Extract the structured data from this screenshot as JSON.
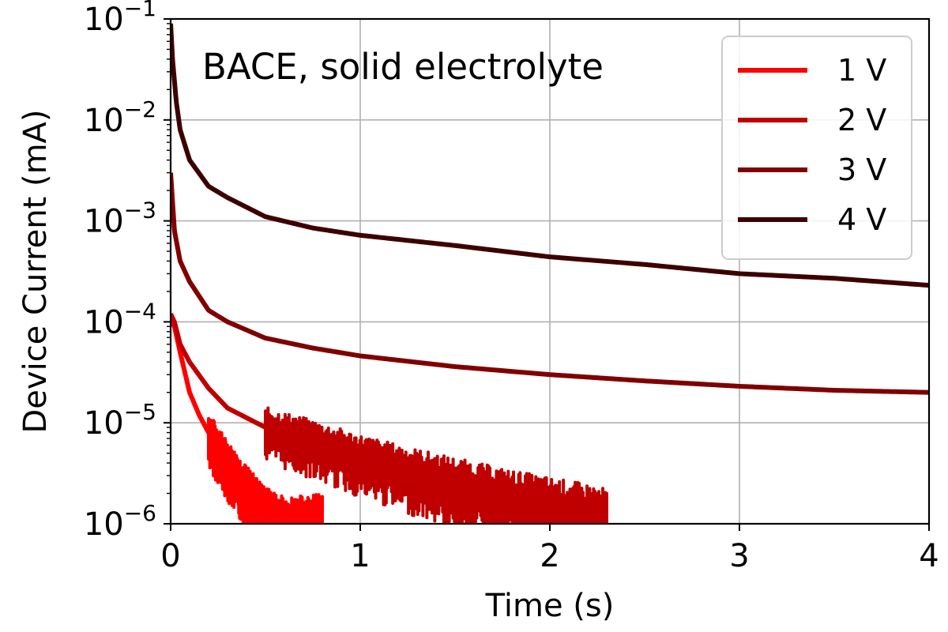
{
  "chart_data": {
    "type": "line",
    "title": "",
    "annotation": "BACE,  solid electrolyte",
    "xlabel": "Time (s)",
    "ylabel": "Device Current (mA)",
    "xlim": [
      0,
      4
    ],
    "ylim": [
      1e-06,
      0.1
    ],
    "yscale": "log",
    "x_ticks": [
      0,
      1,
      2,
      3,
      4
    ],
    "x_tick_labels": [
      "0",
      "1",
      "2",
      "3",
      "4"
    ],
    "y_ticks": [
      {
        "value": 0.1,
        "base": "10",
        "exp": "−1"
      },
      {
        "value": 0.01,
        "base": "10",
        "exp": "−2"
      },
      {
        "value": 0.001,
        "base": "10",
        "exp": "−3"
      },
      {
        "value": 0.0001,
        "base": "10",
        "exp": "−4"
      },
      {
        "value": 1e-05,
        "base": "10",
        "exp": "−5"
      },
      {
        "value": 1e-06,
        "base": "10",
        "exp": "−6"
      }
    ],
    "grid": true,
    "legend_position": "top-right",
    "series": [
      {
        "name": "1 V",
        "color": "#ff0000",
        "noise_from_x": 0.2,
        "points": [
          [
            0.0,
            0.0001
          ],
          [
            0.02,
            9e-05
          ],
          [
            0.05,
            5e-05
          ],
          [
            0.1,
            2e-05
          ],
          [
            0.15,
            1.2e-05
          ],
          [
            0.2,
            8e-06
          ],
          [
            0.3,
            4e-06
          ],
          [
            0.4,
            2.2e-06
          ],
          [
            0.5,
            1.3e-06
          ],
          [
            0.6,
            1e-06
          ],
          [
            0.8,
            1e-06
          ]
        ]
      },
      {
        "name": "2 V",
        "color": "#c00000",
        "noise_from_x": 0.5,
        "points": [
          [
            0.0,
            0.00012
          ],
          [
            0.02,
            0.0001
          ],
          [
            0.05,
            6e-05
          ],
          [
            0.1,
            4e-05
          ],
          [
            0.2,
            2.2e-05
          ],
          [
            0.3,
            1.4e-05
          ],
          [
            0.5,
            9e-06
          ],
          [
            0.75,
            6.5e-06
          ],
          [
            1.0,
            4.5e-06
          ],
          [
            1.25,
            3.3e-06
          ],
          [
            1.5,
            2.5e-06
          ],
          [
            1.75,
            1.9e-06
          ],
          [
            2.0,
            1.5e-06
          ],
          [
            2.25,
            1.2e-06
          ],
          [
            2.3,
            1.1e-06
          ]
        ]
      },
      {
        "name": "3 V",
        "color": "#800000",
        "noise_from_x": 100,
        "points": [
          [
            0.0,
            0.003
          ],
          [
            0.02,
            0.0008
          ],
          [
            0.05,
            0.0004
          ],
          [
            0.1,
            0.00025
          ],
          [
            0.2,
            0.00013
          ],
          [
            0.3,
            0.0001
          ],
          [
            0.5,
            6.9e-05
          ],
          [
            0.75,
            5.5e-05
          ],
          [
            1.0,
            4.6e-05
          ],
          [
            1.5,
            3.6e-05
          ],
          [
            2.0,
            3e-05
          ],
          [
            2.5,
            2.6e-05
          ],
          [
            3.0,
            2.3e-05
          ],
          [
            3.5,
            2.1e-05
          ],
          [
            4.0,
            2e-05
          ]
        ]
      },
      {
        "name": "4 V",
        "color": "#3d0000",
        "noise_from_x": 100,
        "points": [
          [
            0.0,
            0.09
          ],
          [
            0.01,
            0.04
          ],
          [
            0.03,
            0.015
          ],
          [
            0.05,
            0.008
          ],
          [
            0.1,
            0.004
          ],
          [
            0.2,
            0.0022
          ],
          [
            0.3,
            0.0017
          ],
          [
            0.5,
            0.0011
          ],
          [
            0.75,
            0.00085
          ],
          [
            1.0,
            0.00072
          ],
          [
            1.5,
            0.00057
          ],
          [
            2.0,
            0.00044
          ],
          [
            2.5,
            0.00037
          ],
          [
            3.0,
            0.0003
          ],
          [
            3.5,
            0.00027
          ],
          [
            4.0,
            0.00023
          ]
        ]
      }
    ]
  }
}
